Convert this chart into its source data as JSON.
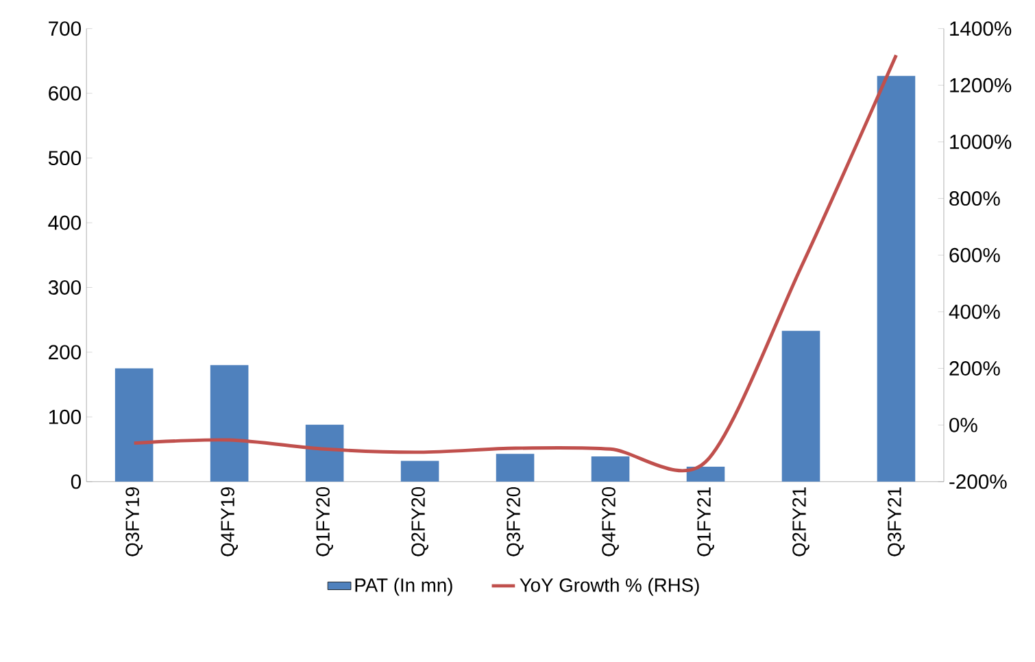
{
  "chart_data": {
    "type": "bar",
    "categories": [
      "Q3FY19",
      "Q4FY19",
      "Q1FY20",
      "Q2FY20",
      "Q3FY20",
      "Q4FY20",
      "Q1FY21",
      "Q2FY21",
      "Q3FY21"
    ],
    "series": [
      {
        "name": "PAT (In mn)",
        "color": "#4f81bd",
        "values": [
          175,
          180,
          88,
          32,
          43,
          39,
          23,
          233,
          627
        ]
      },
      {
        "name": "YoY Growth % (RHS)",
        "type": "line",
        "axis": "y2",
        "color": "#c0504d",
        "values": [
          -64,
          -53,
          -85,
          -96,
          -82,
          -85,
          -130,
          556,
          1306
        ]
      }
    ],
    "ylim": [
      0,
      700
    ],
    "yticks": [
      0,
      100,
      200,
      300,
      400,
      500,
      600,
      700
    ],
    "y2lim": [
      -200,
      1400
    ],
    "y2ticks": [
      {
        "value": -200,
        "label": "-200%"
      },
      {
        "value": 0,
        "label": "0%"
      },
      {
        "value": 200,
        "label": "200%"
      },
      {
        "value": 400,
        "label": "400%"
      },
      {
        "value": 600,
        "label": "600%"
      },
      {
        "value": 800,
        "label": "800%"
      },
      {
        "value": 1000,
        "label": "1000%"
      },
      {
        "value": 1200,
        "label": "1200%"
      },
      {
        "value": 1400,
        "label": "1400%"
      }
    ],
    "legend": "bottom"
  }
}
